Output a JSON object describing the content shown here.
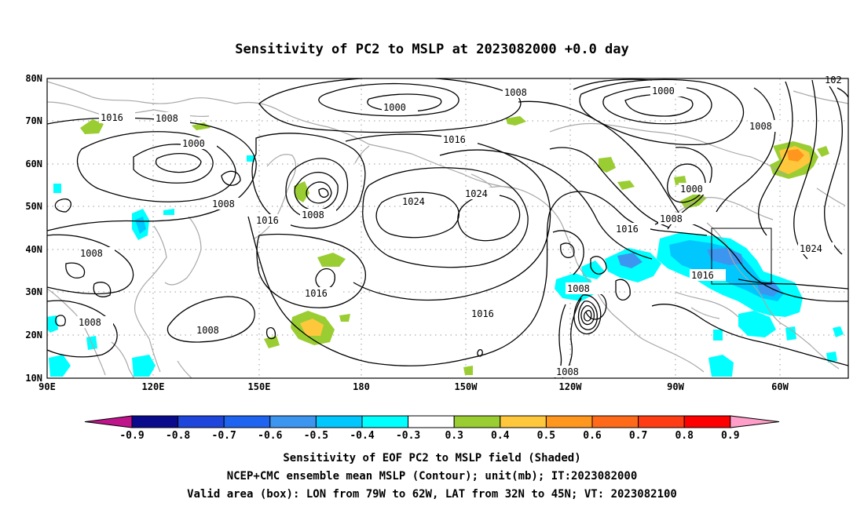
{
  "title": "Sensitivity of PC2 to MSLP at 2023082000 +0.0 day",
  "map": {
    "lon_labels": [
      "90E",
      "120E",
      "150E",
      "180",
      "150W",
      "120W",
      "90W",
      "60W"
    ],
    "lat_labels": [
      "80N",
      "70N",
      "60N",
      "50N",
      "40N",
      "30N",
      "20N",
      "10N"
    ],
    "box": {
      "lon_range": [
        "79W",
        "62W"
      ],
      "lat_range": [
        "32N",
        "45N"
      ]
    },
    "contour_labels": [
      "1016",
      "1008",
      "1000",
      "1008",
      "1016",
      "1008",
      "1000",
      "1008",
      "1024",
      "1024",
      "1016",
      "1016",
      "1016",
      "1008",
      "1016",
      "1008",
      "1008",
      "1008",
      "1016",
      "1008",
      "1000",
      "1008",
      "1000",
      "1024",
      "102",
      "1008",
      "1008"
    ]
  },
  "colorbar": {
    "ticks": [
      "-0.9",
      "-0.8",
      "-0.7",
      "-0.6",
      "-0.5",
      "-0.4",
      "-0.3",
      "0.3",
      "0.4",
      "0.5",
      "0.6",
      "0.7",
      "0.8",
      "0.9"
    ],
    "colors": [
      "#0a0a8c",
      "#1e46dc",
      "#1e64f0",
      "#3c96f0",
      "#00c8ff",
      "#00ffff",
      "#ffffff",
      "#9acd32",
      "#ffc83c",
      "#ff961e",
      "#ff6a1a",
      "#ff3c14",
      "#ff0000"
    ],
    "under_color": "#c0148c",
    "over_color": "#ff9ec8"
  },
  "caption": {
    "line1": "Sensitivity of EOF PC2 to MSLP field (Shaded)",
    "line2": "NCEP+CMC ensemble mean MSLP (Contour); unit(mb); IT:2023082000",
    "line3": "Valid area (box): LON from 79W to 62W, LAT from 32N to 45N; VT: 2023082100"
  }
}
